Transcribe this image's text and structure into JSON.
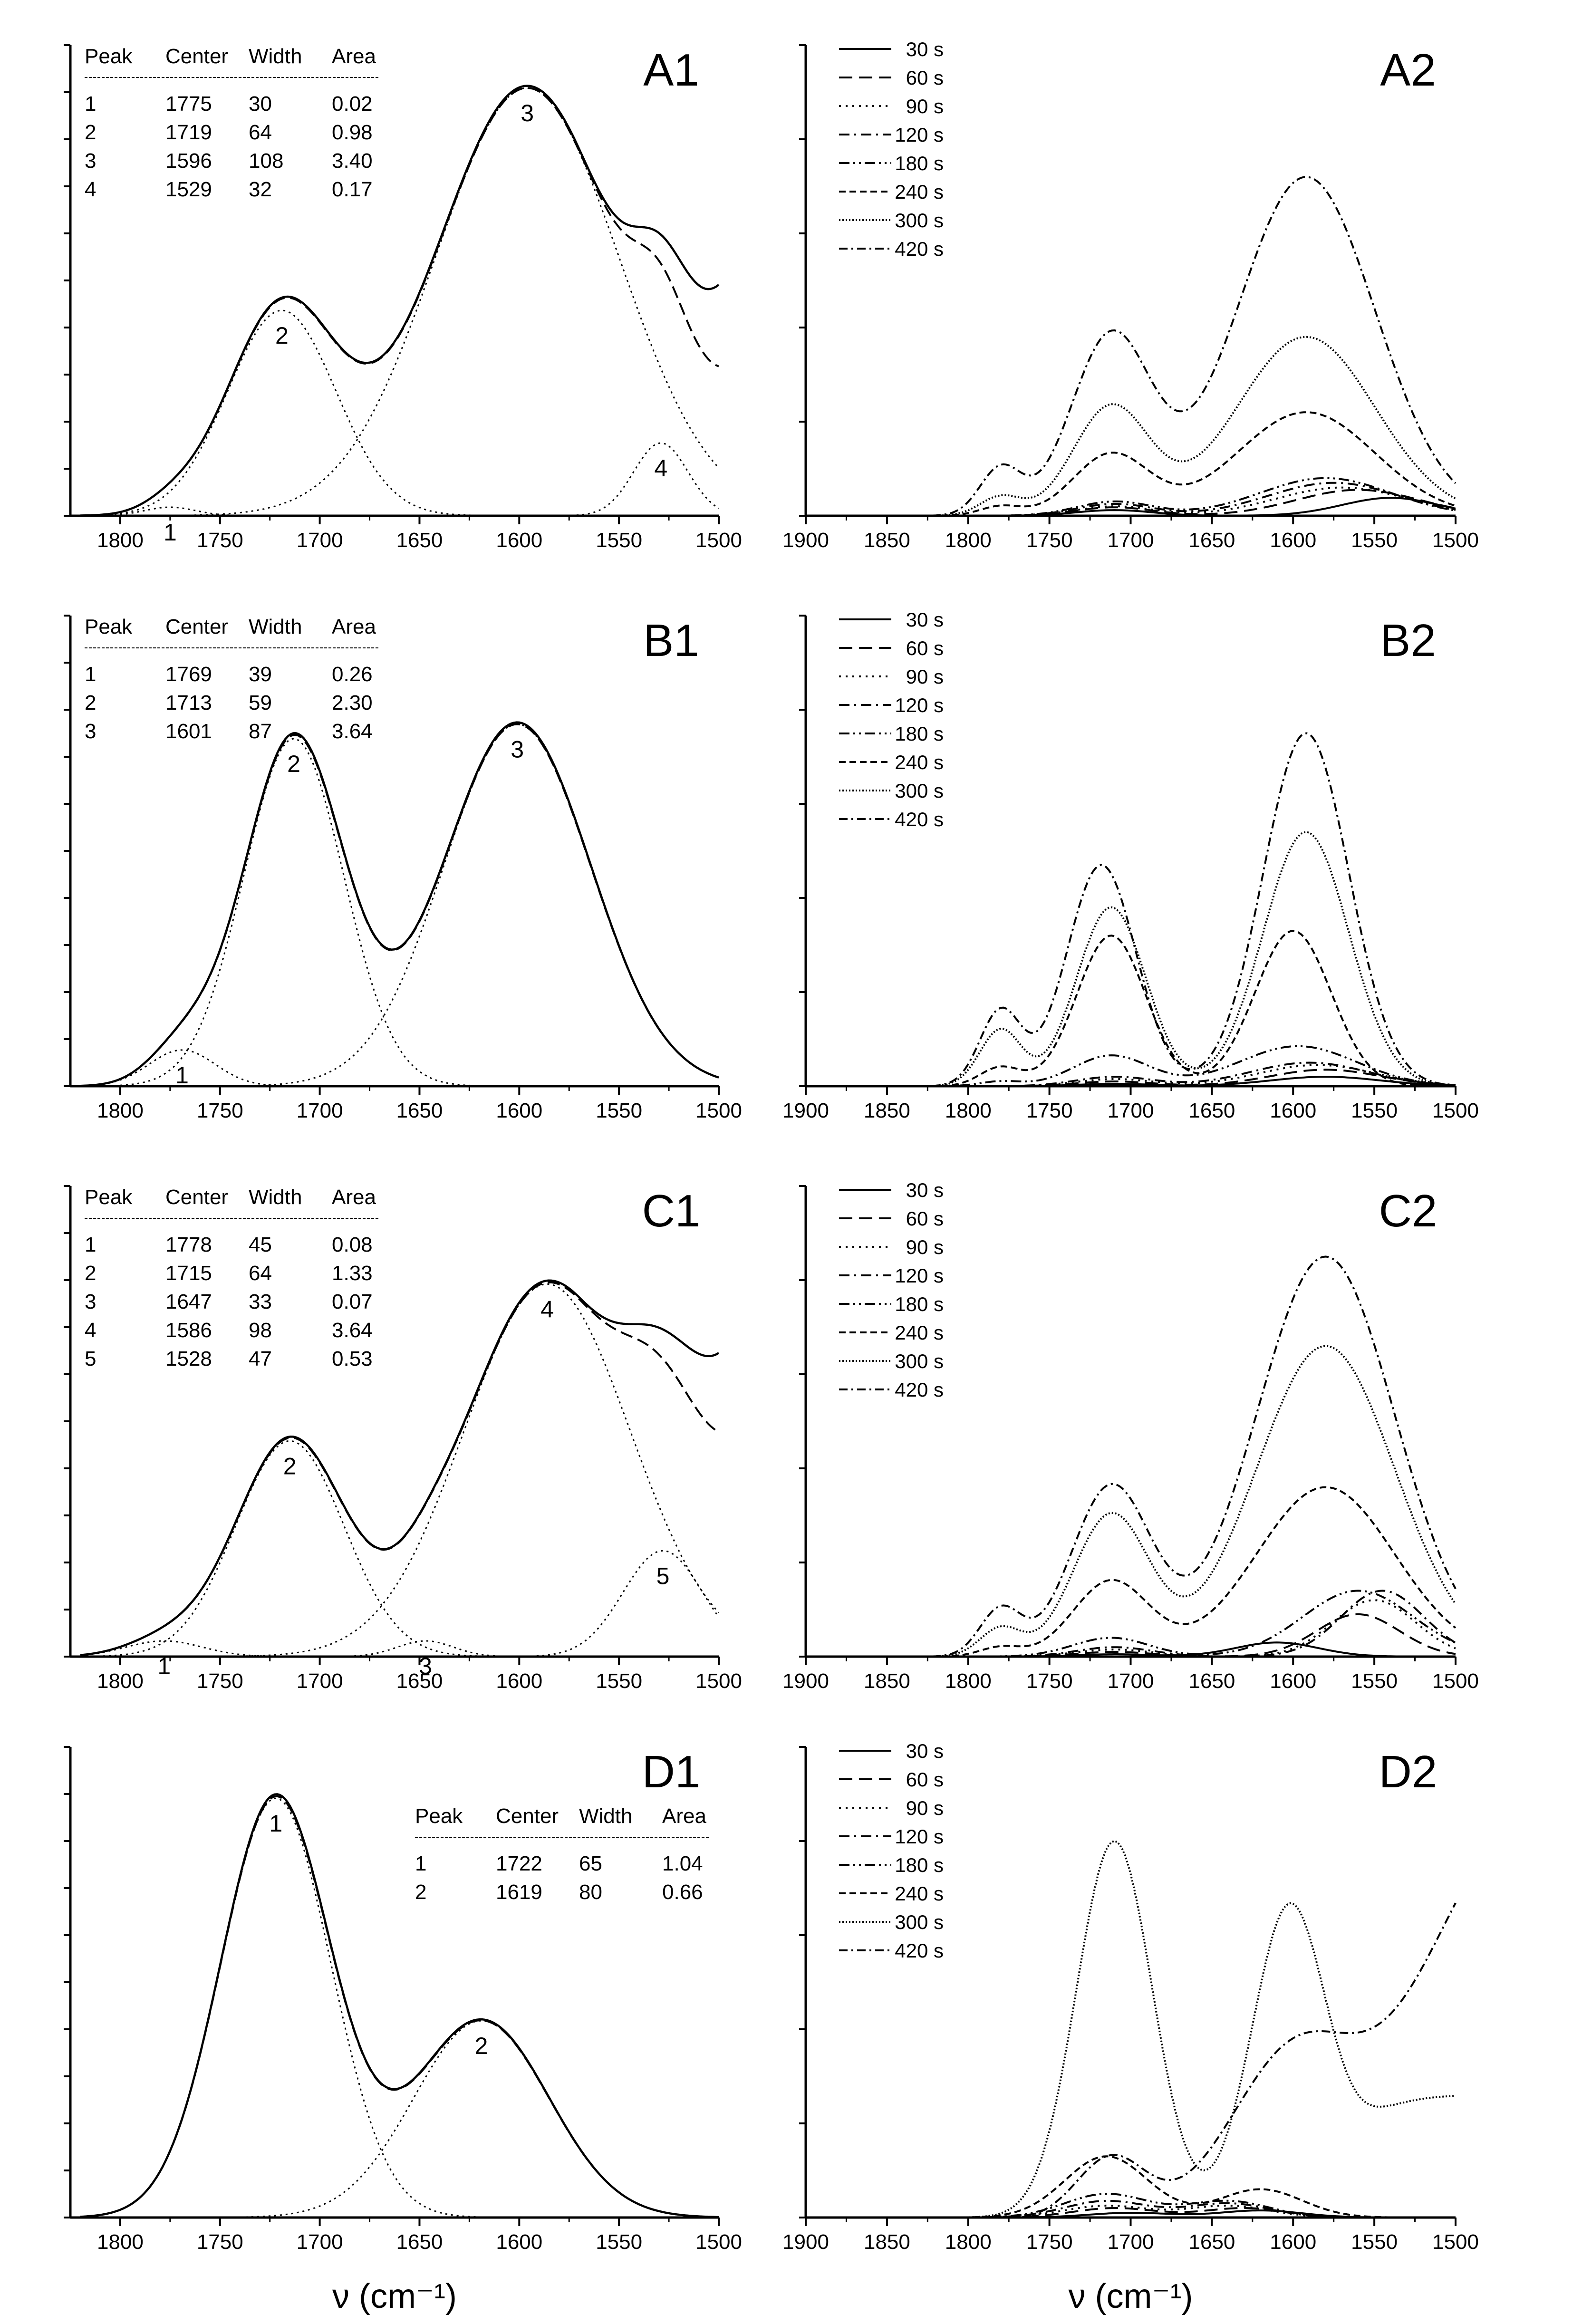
{
  "figure": {
    "xlabel_left": "ν (cm⁻¹)",
    "xlabel_right": "ν (cm⁻¹)"
  },
  "chart_data": [
    {
      "id": "A1",
      "type": "line",
      "panel_label": "A1",
      "xlim": [
        1825,
        1500
      ],
      "xticks": [
        1800,
        1750,
        1700,
        1650,
        1600,
        1550,
        1500
      ],
      "ylim": [
        0,
        1.1
      ],
      "table": {
        "headers": [
          "Peak",
          "Center",
          "Width",
          "Area"
        ],
        "rows": [
          [
            "1",
            "1775",
            "30",
            "0.02"
          ],
          [
            "2",
            "1719",
            "64",
            "0.98"
          ],
          [
            "3",
            "1596",
            "108",
            "3.40"
          ],
          [
            "4",
            "1529",
            "32",
            "0.17"
          ]
        ]
      },
      "peaks": [
        {
          "label": "1",
          "center": 1775,
          "width": 30,
          "height": 0.02
        },
        {
          "label": "2",
          "center": 1719,
          "width": 64,
          "height": 0.48
        },
        {
          "label": "3",
          "center": 1596,
          "width": 108,
          "height": 1.0
        },
        {
          "label": "4",
          "center": 1529,
          "width": 32,
          "height": 0.17
        }
      ],
      "tail_dashed": 0.22,
      "tail_solid": 0.41
    },
    {
      "id": "A2",
      "type": "line",
      "panel_label": "A2",
      "xlim": [
        1900,
        1500
      ],
      "xticks": [
        1900,
        1850,
        1800,
        1750,
        1700,
        1650,
        1600,
        1550,
        1500
      ],
      "ylim": [
        0,
        1.0
      ],
      "legend": [
        "30 s",
        "60 s",
        "90 s",
        "120 s",
        "180 s",
        "240 s",
        "300 s",
        "420 s"
      ],
      "series": [
        {
          "name": "30 s",
          "peaks": [
            [
              1710,
              55,
              0.012
            ],
            [
              1540,
              70,
              0.038
            ]
          ],
          "shoulder": 0
        },
        {
          "name": "60 s",
          "peaks": [
            [
              1710,
              55,
              0.018
            ],
            [
              1560,
              90,
              0.055
            ]
          ],
          "shoulder": 0
        },
        {
          "name": "90 s",
          "peaks": [
            [
              1710,
              55,
              0.02
            ],
            [
              1570,
              95,
              0.06
            ]
          ],
          "shoulder": 0
        },
        {
          "name": "120 s",
          "peaks": [
            [
              1710,
              55,
              0.025
            ],
            [
              1575,
              95,
              0.07
            ]
          ],
          "shoulder": 0
        },
        {
          "name": "180 s",
          "peaks": [
            [
              1710,
              55,
              0.03
            ],
            [
              1580,
              95,
              0.08
            ]
          ],
          "shoulder": 0
        },
        {
          "name": "240 s",
          "peaks": [
            [
              1712,
              55,
              0.13
            ],
            [
              1592,
              100,
              0.22
            ]
          ],
          "shoulder": 0.01
        },
        {
          "name": "300 s",
          "peaks": [
            [
              1712,
              55,
              0.23
            ],
            [
              1592,
              100,
              0.38
            ]
          ],
          "shoulder": 0.02
        },
        {
          "name": "420 s",
          "peaks": [
            [
              1712,
              58,
              0.38
            ],
            [
              1592,
              100,
              0.72
            ]
          ],
          "shoulder": 0.05
        }
      ]
    },
    {
      "id": "B1",
      "type": "line",
      "panel_label": "B1",
      "xlim": [
        1825,
        1500
      ],
      "xticks": [
        1800,
        1750,
        1700,
        1650,
        1600,
        1550,
        1500
      ],
      "ylim": [
        0,
        1.3
      ],
      "table": {
        "headers": [
          "Peak",
          "Center",
          "Width",
          "Area"
        ],
        "rows": [
          [
            "1",
            "1769",
            "39",
            "0.26"
          ],
          [
            "2",
            "1713",
            "59",
            "2.30"
          ],
          [
            "3",
            "1601",
            "87",
            "3.64"
          ]
        ]
      },
      "peaks": [
        {
          "label": "1",
          "center": 1769,
          "width": 39,
          "height": 0.1
        },
        {
          "label": "2",
          "center": 1713,
          "width": 59,
          "height": 0.96
        },
        {
          "label": "3",
          "center": 1601,
          "width": 87,
          "height": 1.0
        }
      ]
    },
    {
      "id": "B2",
      "type": "line",
      "panel_label": "B2",
      "xlim": [
        1900,
        1500
      ],
      "xticks": [
        1900,
        1850,
        1800,
        1750,
        1700,
        1650,
        1600,
        1550,
        1500
      ],
      "ylim": [
        0,
        1.0
      ],
      "legend": [
        "30 s",
        "60 s",
        "90 s",
        "120 s",
        "180 s",
        "240 s",
        "300 s",
        "420 s"
      ],
      "series": [
        {
          "name": "30 s",
          "peaks": [
            [
              1710,
              55,
              0.005
            ],
            [
              1580,
              80,
              0.02
            ]
          ],
          "shoulder": 0
        },
        {
          "name": "60 s",
          "peaks": [
            [
              1710,
              55,
              0.01
            ],
            [
              1580,
              80,
              0.035
            ]
          ],
          "shoulder": 0
        },
        {
          "name": "90 s",
          "peaks": [
            [
              1710,
              55,
              0.015
            ],
            [
              1585,
              85,
              0.045
            ]
          ],
          "shoulder": 0
        },
        {
          "name": "120 s",
          "peaks": [
            [
              1710,
              55,
              0.02
            ],
            [
              1590,
              85,
              0.05
            ]
          ],
          "shoulder": 0
        },
        {
          "name": "180 s",
          "peaks": [
            [
              1712,
              55,
              0.065
            ],
            [
              1597,
              85,
              0.085
            ]
          ],
          "shoulder": 0.005
        },
        {
          "name": "240 s",
          "peaks": [
            [
              1712,
              50,
              0.32
            ],
            [
              1600,
              55,
              0.33
            ]
          ],
          "shoulder": 0.02
        },
        {
          "name": "300 s",
          "peaks": [
            [
              1712,
              50,
              0.38
            ],
            [
              1592,
              62,
              0.54
            ]
          ],
          "shoulder": 0.06
        },
        {
          "name": "420 s",
          "peaks": [
            [
              1718,
              50,
              0.47
            ],
            [
              1592,
              62,
              0.75
            ]
          ],
          "shoulder": 0.08
        }
      ]
    },
    {
      "id": "C1",
      "type": "line",
      "panel_label": "C1",
      "xlim": [
        1825,
        1500
      ],
      "xticks": [
        1800,
        1750,
        1700,
        1650,
        1600,
        1550,
        1500
      ],
      "ylim": [
        0,
        1.2
      ],
      "table": {
        "headers": [
          "Peak",
          "Center",
          "Width",
          "Area"
        ],
        "rows": [
          [
            "1",
            "1778",
            "45",
            "0.08"
          ],
          [
            "2",
            "1715",
            "64",
            "1.33"
          ],
          [
            "3",
            "1647",
            "33",
            "0.07"
          ],
          [
            "4",
            "1586",
            "98",
            "3.64"
          ],
          [
            "5",
            "1528",
            "47",
            "0.53"
          ]
        ]
      },
      "peaks": [
        {
          "label": "1",
          "center": 1778,
          "width": 45,
          "height": 0.04
        },
        {
          "label": "2",
          "center": 1715,
          "width": 64,
          "height": 0.55
        },
        {
          "label": "3",
          "center": 1647,
          "width": 33,
          "height": 0.04
        },
        {
          "label": "4",
          "center": 1586,
          "width": 98,
          "height": 0.95
        },
        {
          "label": "5",
          "center": 1528,
          "width": 47,
          "height": 0.27
        }
      ],
      "tail_dashed": 0.36,
      "tail_solid": 0.56
    },
    {
      "id": "C2",
      "type": "line",
      "panel_label": "C2",
      "xlim": [
        1900,
        1500
      ],
      "xticks": [
        1900,
        1850,
        1800,
        1750,
        1700,
        1650,
        1600,
        1550,
        1500
      ],
      "ylim": [
        0,
        1.0
      ],
      "legend": [
        "30 s",
        "60 s",
        "90 s",
        "120 s",
        "180 s",
        "240 s",
        "300 s",
        "420 s"
      ],
      "series": [
        {
          "name": "30 s",
          "peaks": [
            [
              1710,
              55,
              0.005
            ],
            [
              1610,
              60,
              0.03
            ]
          ],
          "shoulder": 0
        },
        {
          "name": "60 s",
          "peaks": [
            [
              1710,
              55,
              0.01
            ],
            [
              1560,
              60,
              0.09
            ]
          ],
          "shoulder": 0
        },
        {
          "name": "90 s",
          "peaks": [
            [
              1710,
              55,
              0.015
            ],
            [
              1550,
              60,
              0.12
            ]
          ],
          "shoulder": 0
        },
        {
          "name": "120 s",
          "peaks": [
            [
              1710,
              55,
              0.02
            ],
            [
              1545,
              60,
              0.14
            ]
          ],
          "shoulder": 0
        },
        {
          "name": "180 s",
          "peaks": [
            [
              1712,
              55,
              0.04
            ],
            [
              1560,
              80,
              0.14
            ]
          ],
          "shoulder": 0
        },
        {
          "name": "240 s",
          "peaks": [
            [
              1712,
              55,
              0.16
            ],
            [
              1580,
              100,
              0.36
            ]
          ],
          "shoulder": 0.01
        },
        {
          "name": "300 s",
          "peaks": [
            [
              1712,
              55,
              0.3
            ],
            [
              1580,
              100,
              0.66
            ]
          ],
          "shoulder": 0.03
        },
        {
          "name": "420 s",
          "peaks": [
            [
              1712,
              58,
              0.36
            ],
            [
              1580,
              100,
              0.85
            ]
          ],
          "shoulder": 0.05
        }
      ]
    },
    {
      "id": "D1",
      "type": "line",
      "panel_label": "D1",
      "xlim": [
        1825,
        1500
      ],
      "xticks": [
        1800,
        1750,
        1700,
        1650,
        1600,
        1550,
        1500
      ],
      "ylim": [
        0,
        1.1
      ],
      "table": {
        "headers": [
          "Peak",
          "Center",
          "Width",
          "Area"
        ],
        "rows": [
          [
            "1",
            "1722",
            "65",
            "1.04"
          ],
          [
            "2",
            "1619",
            "80",
            "0.66"
          ]
        ]
      },
      "peaks": [
        {
          "label": "1",
          "center": 1722,
          "width": 65,
          "height": 0.98
        },
        {
          "label": "2",
          "center": 1619,
          "width": 80,
          "height": 0.46
        }
      ]
    },
    {
      "id": "D2",
      "type": "line",
      "panel_label": "D2",
      "xlim": [
        1900,
        1500
      ],
      "xticks": [
        1900,
        1850,
        1800,
        1750,
        1700,
        1650,
        1600,
        1550,
        1500
      ],
      "ylim": [
        0,
        1.0
      ],
      "legend": [
        "30 s",
        "60 s",
        "90 s",
        "120 s",
        "180 s",
        "240 s",
        "300 s",
        "420 s"
      ],
      "series": [
        {
          "name": "30 s",
          "peaks": [
            [
              1700,
              60,
              0.01
            ],
            [
              1620,
              60,
              0.015
            ]
          ],
          "shoulder": 0
        },
        {
          "name": "60 s",
          "peaks": [
            [
              1710,
              60,
              0.02
            ],
            [
              1630,
              60,
              0.02
            ]
          ],
          "shoulder": 0
        },
        {
          "name": "90 s",
          "peaks": [
            [
              1715,
              60,
              0.025
            ],
            [
              1640,
              60,
              0.025
            ]
          ],
          "shoulder": 0
        },
        {
          "name": "120 s",
          "peaks": [
            [
              1715,
              60,
              0.035
            ],
            [
              1640,
              60,
              0.03
            ]
          ],
          "shoulder": 0
        },
        {
          "name": "180 s",
          "peaks": [
            [
              1715,
              60,
              0.05
            ],
            [
              1640,
              60,
              0.035
            ]
          ],
          "shoulder": 0
        },
        {
          "name": "240 s",
          "peaks": [
            [
              1715,
              60,
              0.13
            ],
            [
              1620,
              60,
              0.06
            ]
          ],
          "shoulder": 0
        },
        {
          "name": "300 s",
          "peaks": [
            [
              1710,
              55,
              0.8
            ],
            [
              1602,
              55,
              0.66
            ]
          ],
          "shoulder": 0,
          "floor": 0.26,
          "tail": true
        },
        {
          "name": "420 s",
          "peaks": [
            [
              1712,
              50,
              0.13
            ]
          ],
          "shoulder": 0,
          "rise": true
        }
      ]
    }
  ]
}
